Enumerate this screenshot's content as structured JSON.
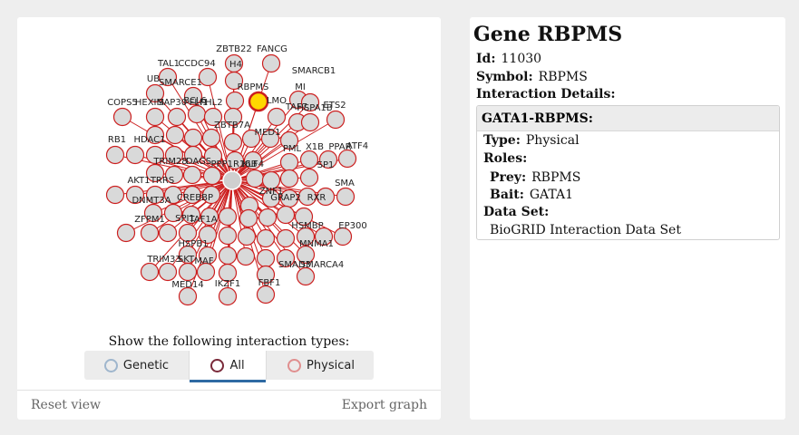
{
  "network": {
    "center_gene": "GATA1",
    "selected_gene": "RBPMS",
    "edge_color": "#cc1f1f",
    "node_fill": "#d9d9d9",
    "node_stroke": "#cc1f1f",
    "selected_fill": "#ffd700",
    "visible_labels": [
      "ZBTB22",
      "FANCG",
      "TAL1",
      "CCDC94",
      "H4",
      "UB",
      "SMARCE1",
      "BCL6",
      "MI",
      "SMARCB1",
      "RBPMS",
      "LMO",
      "COPS5",
      "HEXIM",
      "SAP30",
      "FLI1",
      "FHL2",
      "ZBTB7A",
      "TAF7",
      "HSPA1B",
      "ETS2",
      "RB1",
      "HDAC1",
      "TRIM28",
      "DAGS",
      "PPP1R16B",
      "MED1",
      "PML",
      "X1B",
      "PPAR",
      "ATF4",
      "AKT1",
      "TRRS",
      "CREBBP",
      "KLF4",
      "ZNF1",
      "GRAP2",
      "RXR",
      "SP1",
      "SMA",
      "DNMT3A",
      "ZFPM1",
      "SPI1",
      "TAF1A",
      "HSPB1",
      "HSMBP",
      "EP300",
      "TRIM33",
      "SKT",
      "MAF",
      "SMARCA4",
      "IKZF1",
      "FBF1",
      "MED14",
      "MNMA1",
      "SMAD3"
    ]
  },
  "types": {
    "label": "Show the following interaction types:",
    "tabs": [
      {
        "label": "Genetic",
        "color": "#9fb6cd"
      },
      {
        "label": "All",
        "color": "#7a2a3a"
      },
      {
        "label": "Physical",
        "color": "#e08f8f"
      }
    ]
  },
  "footer": {
    "reset": "Reset view",
    "export": "Export graph"
  },
  "gene": {
    "title": "Gene RBPMS",
    "id_label": "Id:",
    "id_value": "11030",
    "symbol_label": "Symbol:",
    "symbol_value": "RBPMS",
    "details_label": "Interaction Details:"
  },
  "interaction": {
    "title": "GATA1-RBPMS:",
    "type_label": "Type:",
    "type_value": "Physical",
    "roles_label": "Roles:",
    "prey_label": "Prey:",
    "prey_value": "RBPMS",
    "bait_label": "Bait:",
    "bait_value": "GATA1",
    "dataset_label": "Data Set:",
    "dataset_value": "BioGRID Interaction Data Set"
  }
}
